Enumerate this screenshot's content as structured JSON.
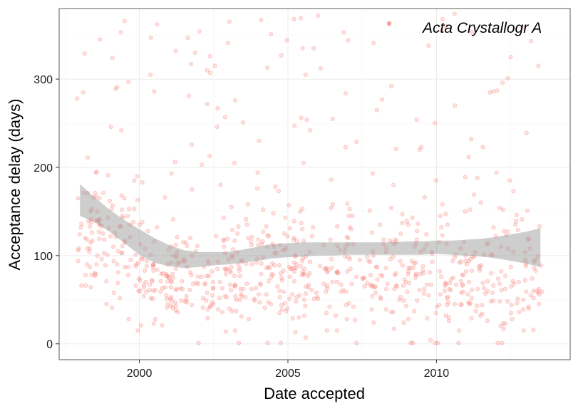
{
  "chart_data": {
    "type": "scatter",
    "xlabel": "Date accepted",
    "ylabel": "Acceptance delay (days)",
    "x_ticks": [
      2000,
      2005,
      2010
    ],
    "y_ticks": [
      0,
      100,
      200,
      300
    ],
    "xlim": [
      1997.3,
      2014.5
    ],
    "ylim": [
      -18,
      380
    ],
    "grid": true,
    "legend_position": "top-right",
    "series": [
      {
        "name": "Acta Crystallogr A",
        "color": "#F8766D",
        "point_count": 900
      }
    ],
    "smooth": {
      "x": [
        1998.0,
        1998.5,
        1999.0,
        1999.5,
        2000.0,
        2000.5,
        2001.0,
        2001.5,
        2002.0,
        2002.5,
        2003.0,
        2003.5,
        2004.0,
        2004.5,
        2005.0,
        2005.5,
        2006.0,
        2006.5,
        2007.0,
        2007.5,
        2008.0,
        2008.5,
        2009.0,
        2009.5,
        2010.0,
        2010.5,
        2011.0,
        2011.5,
        2012.0,
        2012.5,
        2013.0,
        2013.5
      ],
      "lower": [
        145,
        138,
        127,
        114,
        101,
        92,
        88,
        86,
        87,
        89,
        90,
        92,
        94,
        97,
        98,
        99,
        100,
        100,
        101,
        101,
        101,
        101,
        101,
        101,
        102,
        101,
        100,
        99,
        97,
        94,
        91,
        87
      ],
      "upper": [
        181,
        166,
        152,
        140,
        130,
        120,
        112,
        106,
        104,
        104,
        104,
        107,
        110,
        113,
        114,
        115,
        115,
        115,
        115,
        115,
        115,
        115,
        116,
        116,
        117,
        117,
        118,
        119,
        121,
        124,
        127,
        131
      ],
      "fill": "#999999"
    },
    "panel_background": "#ffffff",
    "grid_color": "#ebebeb",
    "border_color": "#7f7f7f"
  }
}
